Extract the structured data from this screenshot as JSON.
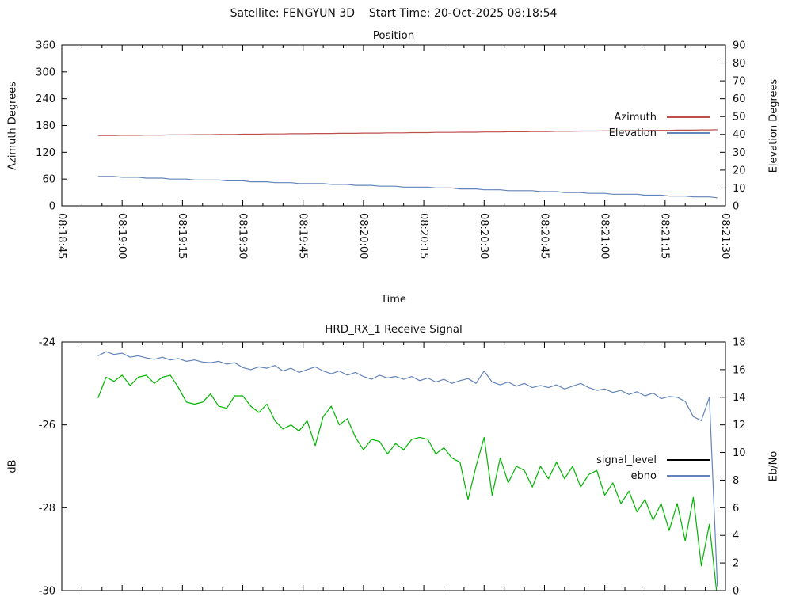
{
  "header": {
    "title": "Satellite: FENGYUN 3D    Start Time: 20-Oct-2025 08:18:54"
  },
  "colors": {
    "axis": "#000000",
    "azimuth_red": "#bb4f4b",
    "elevation_blue": "#6384b8",
    "signal_green": "#00b400",
    "legend_black": "#000000"
  },
  "chart_data": [
    {
      "type": "line",
      "title": "Position",
      "xlabel": "Time",
      "ylabel": "Azimuth Degrees",
      "y2label": "Elevation Degrees",
      "x_domain_seconds": [
        0,
        165
      ],
      "x_major_ticks_seconds": [
        0,
        15,
        30,
        45,
        60,
        75,
        90,
        105,
        120,
        135,
        150,
        165
      ],
      "x_tick_labels": [
        "08:18:45",
        "08:19:00",
        "08:19:15",
        "08:19:30",
        "08:19:45",
        "08:20:00",
        "08:20:15",
        "08:20:30",
        "08:20:45",
        "08:21:00",
        "08:21:15",
        "08:21:30"
      ],
      "x_minor_step_seconds": 5,
      "ylim": [
        0,
        360
      ],
      "y_ticks": [
        0,
        60,
        120,
        180,
        240,
        300,
        360
      ],
      "y2lim": [
        0,
        90
      ],
      "y2_ticks": [
        0,
        10,
        20,
        30,
        40,
        50,
        60,
        70,
        80,
        90
      ],
      "grid": false,
      "legend_position": "right-middle",
      "legend": [
        {
          "label": "Azimuth",
          "color": "#bb4f4b"
        },
        {
          "label": "Elevation",
          "color": "#6384b8"
        }
      ],
      "series": [
        {
          "name": "Azimuth",
          "axis": "y",
          "color": "#bb4f4b",
          "t_start": 9,
          "t_step": 2,
          "values": [
            157.5,
            157.5,
            157.5,
            158,
            158,
            158,
            158.5,
            158.5,
            158.5,
            159,
            159,
            159,
            159.5,
            159.5,
            159.5,
            160,
            160,
            160,
            160.5,
            160.5,
            160.5,
            161,
            161,
            161,
            161.5,
            161.5,
            161.5,
            162,
            162,
            162,
            162.5,
            162.5,
            162.5,
            163,
            163,
            163,
            163.5,
            163.5,
            163.5,
            164,
            164,
            164,
            164.5,
            164.5,
            164.5,
            165,
            165,
            165,
            165.5,
            165.5,
            165.5,
            166,
            166,
            166,
            166.5,
            166.5,
            166.5,
            167,
            167,
            167,
            167.5,
            167.5,
            167.5,
            168,
            168,
            168,
            168.5,
            168.5,
            168.5,
            169,
            169,
            169,
            169.5,
            169.5,
            169.5,
            170,
            170,
            170.5
          ]
        },
        {
          "name": "Elevation",
          "axis": "y2",
          "color": "#6384b8",
          "t_start": 9,
          "t_step": 2,
          "values": [
            16.5,
            16.5,
            16.5,
            16,
            16,
            16,
            15.5,
            15.5,
            15.5,
            15,
            15,
            15,
            14.5,
            14.5,
            14.5,
            14.5,
            14,
            14,
            14,
            13.5,
            13.5,
            13.5,
            13,
            13,
            13,
            12.5,
            12.5,
            12.5,
            12.5,
            12,
            12,
            12,
            11.5,
            11.5,
            11.5,
            11,
            11,
            11,
            10.5,
            10.5,
            10.5,
            10.5,
            10,
            10,
            10,
            9.5,
            9.5,
            9.5,
            9,
            9,
            9,
            8.5,
            8.5,
            8.5,
            8.5,
            8,
            8,
            8,
            7.5,
            7.5,
            7.5,
            7,
            7,
            7,
            6.5,
            6.5,
            6.5,
            6.5,
            6,
            6,
            6,
            5.5,
            5.5,
            5.5,
            5,
            5,
            5,
            4.5
          ]
        }
      ]
    },
    {
      "type": "line",
      "title": "HRD_RX_1 Receive Signal",
      "xlabel": "",
      "ylabel": "dB",
      "y2label": "Eb/No",
      "x_domain_seconds": [
        0,
        165
      ],
      "x_major_ticks_seconds": [
        0,
        15,
        30,
        45,
        60,
        75,
        90,
        105,
        120,
        135,
        150,
        165
      ],
      "x_tick_labels": [],
      "x_minor_step_seconds": 5,
      "ylim": [
        -30,
        -24
      ],
      "y_ticks": [
        -30,
        -28,
        -26,
        -24
      ],
      "y2lim": [
        0,
        18
      ],
      "y2_ticks": [
        0,
        2,
        4,
        6,
        8,
        10,
        12,
        14,
        16,
        18
      ],
      "grid": false,
      "legend_position": "right-middle",
      "legend": [
        {
          "label": "signal_level",
          "color": "#000000"
        },
        {
          "label": "ebno",
          "color": "#6384b8"
        }
      ],
      "series": [
        {
          "name": "signal_level",
          "axis": "y",
          "color": "#00b400",
          "t_start": 9,
          "t_step": 2,
          "values": [
            -25.35,
            -24.85,
            -24.95,
            -24.8,
            -25.05,
            -24.85,
            -24.8,
            -25.0,
            -24.85,
            -24.8,
            -25.1,
            -25.45,
            -25.5,
            -25.45,
            -25.25,
            -25.55,
            -25.6,
            -25.3,
            -25.3,
            -25.55,
            -25.7,
            -25.5,
            -25.9,
            -26.1,
            -26.0,
            -26.15,
            -25.9,
            -26.5,
            -25.8,
            -25.55,
            -26.0,
            -25.85,
            -26.3,
            -26.6,
            -26.35,
            -26.4,
            -26.7,
            -26.45,
            -26.6,
            -26.35,
            -26.3,
            -26.35,
            -26.7,
            -26.55,
            -26.8,
            -26.9,
            -27.8,
            -27.0,
            -26.3,
            -27.7,
            -26.8,
            -27.4,
            -27.0,
            -27.1,
            -27.5,
            -27.0,
            -27.3,
            -26.9,
            -27.3,
            -27.0,
            -27.5,
            -27.2,
            -27.1,
            -27.7,
            -27.4,
            -27.9,
            -27.6,
            -28.1,
            -27.8,
            -28.3,
            -27.9,
            -28.55,
            -27.9,
            -28.8,
            -27.75,
            -29.4,
            -28.4,
            -30.2
          ]
        },
        {
          "name": "ebno",
          "axis": "y2",
          "color": "#6384b8",
          "t_start": 9,
          "t_step": 2,
          "values": [
            17.0,
            17.3,
            17.1,
            17.2,
            16.9,
            17.0,
            16.85,
            16.75,
            16.9,
            16.7,
            16.8,
            16.6,
            16.7,
            16.55,
            16.5,
            16.6,
            16.4,
            16.5,
            16.15,
            16.0,
            16.2,
            16.1,
            16.3,
            15.9,
            16.1,
            15.8,
            16.0,
            16.2,
            15.9,
            15.7,
            15.9,
            15.6,
            15.8,
            15.5,
            15.3,
            15.6,
            15.4,
            15.5,
            15.3,
            15.5,
            15.2,
            15.4,
            15.1,
            15.3,
            15.0,
            15.2,
            15.35,
            15.0,
            15.9,
            15.1,
            14.9,
            15.1,
            14.8,
            15.0,
            14.7,
            14.85,
            14.7,
            14.9,
            14.6,
            14.8,
            15.0,
            14.7,
            14.5,
            14.6,
            14.35,
            14.5,
            14.2,
            14.4,
            14.1,
            14.3,
            13.9,
            14.05,
            14.0,
            13.7,
            12.6,
            12.3,
            14.0,
            0.3
          ]
        }
      ]
    }
  ]
}
